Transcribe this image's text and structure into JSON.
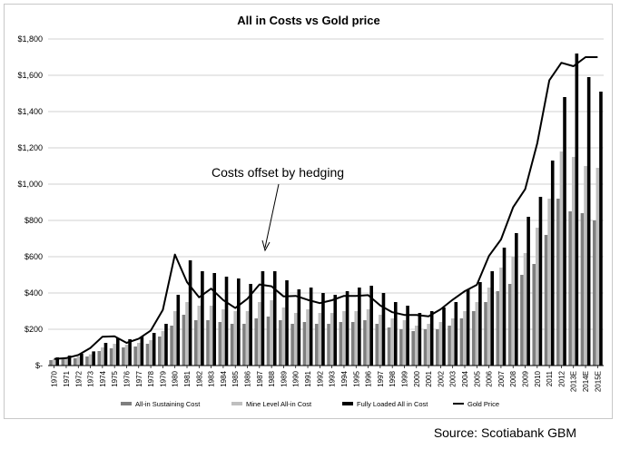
{
  "chart_data": {
    "type": "bar",
    "title": "All in Costs vs Gold price",
    "xlabel": "",
    "ylabel": "",
    "ylim": [
      0,
      1800
    ],
    "yticks": [
      0,
      200,
      400,
      600,
      800,
      1000,
      1200,
      1400,
      1600,
      1800
    ],
    "ytick_labels": [
      "$-",
      "$200",
      "$400",
      "$600",
      "$800",
      "$1,000",
      "$1,200",
      "$1,400",
      "$1,600",
      "$1,800"
    ],
    "grid": true,
    "legend_position": "bottom",
    "categories": [
      "1970",
      "1971",
      "1972",
      "1973",
      "1974",
      "1975",
      "1976",
      "1977",
      "1978",
      "1979",
      "1980",
      "1981",
      "1982",
      "1983",
      "1984",
      "1985",
      "1986",
      "1987",
      "1988",
      "1989",
      "1990",
      "1991",
      "1992",
      "1993",
      "1994",
      "1995",
      "1996",
      "1997",
      "1998",
      "1999",
      "2000",
      "2001",
      "2002",
      "2003",
      "2004",
      "2005",
      "2006",
      "2007",
      "2008",
      "2009",
      "2010",
      "2011",
      "2012",
      "2013E",
      "2014E",
      "2015E"
    ],
    "series": [
      {
        "name": "All-in Sustaining Cost",
        "kind": "bar",
        "color": "#7f7f7f",
        "values": [
          30,
          35,
          40,
          50,
          80,
          95,
          100,
          105,
          120,
          160,
          220,
          280,
          250,
          250,
          240,
          230,
          230,
          260,
          270,
          250,
          230,
          240,
          230,
          230,
          240,
          240,
          250,
          230,
          210,
          200,
          190,
          200,
          200,
          220,
          260,
          300,
          350,
          410,
          450,
          500,
          560,
          720,
          920,
          850,
          840,
          800
        ]
      },
      {
        "name": "Mine Level All-in Cost",
        "kind": "bar",
        "color": "#bfbfbf",
        "values": [
          35,
          42,
          50,
          62,
          100,
          120,
          115,
          125,
          140,
          190,
          300,
          350,
          330,
          330,
          310,
          300,
          300,
          350,
          360,
          320,
          290,
          310,
          290,
          290,
          300,
          300,
          310,
          280,
          260,
          250,
          220,
          230,
          240,
          260,
          300,
          350,
          430,
          540,
          600,
          620,
          760,
          920,
          1180,
          1150,
          1100,
          1090
        ]
      },
      {
        "name": "Fully Loaded All in Cost",
        "kind": "bar",
        "color": "#000000",
        "values": [
          45,
          55,
          65,
          78,
          125,
          150,
          145,
          160,
          180,
          230,
          390,
          580,
          520,
          510,
          490,
          480,
          450,
          520,
          520,
          470,
          420,
          430,
          400,
          390,
          410,
          430,
          440,
          400,
          350,
          330,
          290,
          300,
          320,
          350,
          420,
          460,
          520,
          650,
          730,
          820,
          930,
          1130,
          1480,
          1720,
          1590,
          1510
        ]
      },
      {
        "name": "Gold Price",
        "kind": "line",
        "color": "#000000",
        "values": [
          36,
          41,
          58,
          97,
          159,
          161,
          125,
          148,
          193,
          307,
          612,
          460,
          376,
          424,
          361,
          317,
          368,
          447,
          437,
          381,
          384,
          362,
          344,
          360,
          384,
          384,
          388,
          331,
          294,
          279,
          279,
          271,
          310,
          363,
          410,
          445,
          604,
          695,
          872,
          972,
          1225,
          1572,
          1669,
          1650,
          1700,
          1700
        ]
      }
    ],
    "annotations": [
      {
        "text": "Costs offset by hedging",
        "target": "1987"
      }
    ]
  },
  "source": "Source: Scotiabank GBM"
}
